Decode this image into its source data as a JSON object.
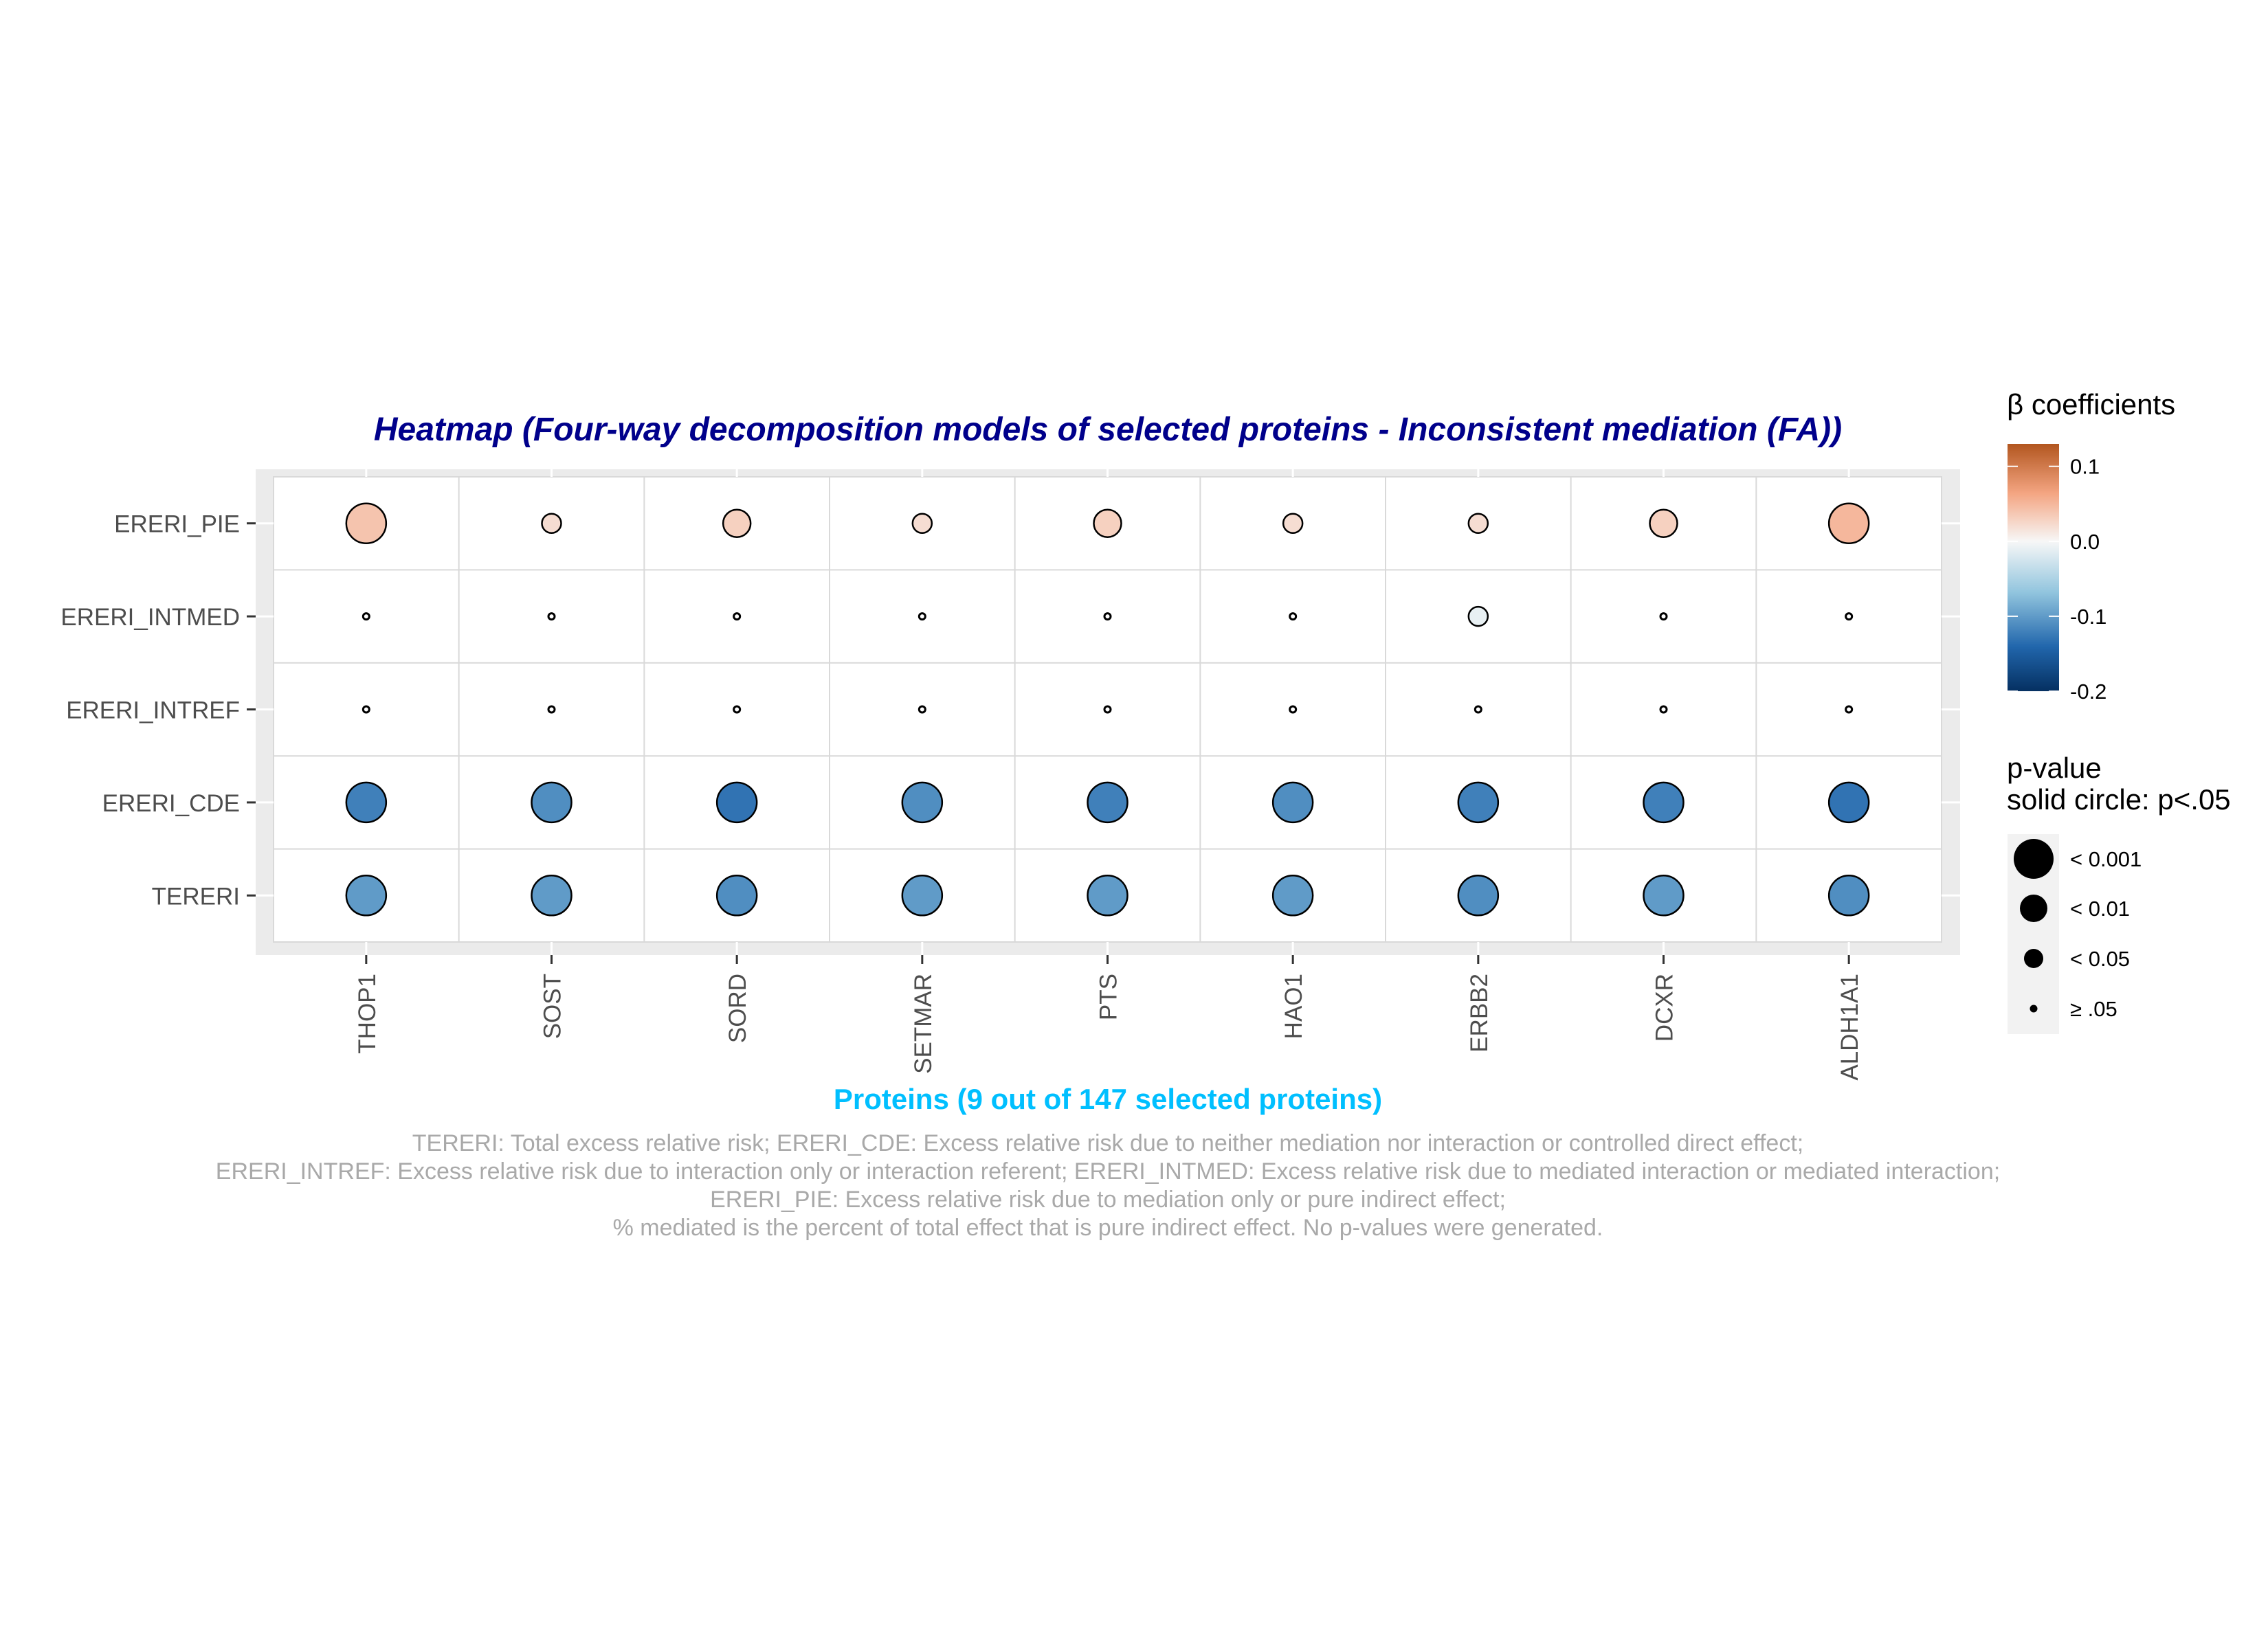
{
  "chart_data": {
    "type": "heatmap",
    "title": "Heatmap (Four-way decomposition models of selected proteins - Inconsistent mediation (FA))",
    "xlabel": "Proteins (9 out of 147 selected proteins)",
    "ylabel": "",
    "x_categories": [
      "THOP1",
      "SOST",
      "SORD",
      "SETMAR",
      "PTS",
      "HAO1",
      "ERBB2",
      "DCXR",
      "ALDH1A1"
    ],
    "y_categories": [
      "ERERI_PIE",
      "ERERI_INTMED",
      "ERERI_INTREF",
      "ERERI_CDE",
      "TERERI"
    ],
    "color_legend": {
      "title": "β coefficients",
      "ticks": [
        "0.1",
        "0.0",
        "-0.1",
        "-0.2"
      ],
      "tick_values": [
        0.1,
        0.0,
        -0.1,
        -0.2
      ],
      "range": [
        -0.2,
        0.13
      ],
      "low_color": "#053061",
      "mid_color": "#f7f7f7",
      "high_color": "#b2561f"
    },
    "size_legend": {
      "title_lines": [
        "p-value",
        "solid circle: p<.05"
      ],
      "labels": [
        "< 0.001",
        "< 0.01",
        "< 0.05",
        "≥ .05"
      ],
      "sizes": [
        4,
        3,
        2,
        1
      ]
    },
    "series": [
      {
        "row": "ERERI_PIE",
        "values": [
          0.04,
          0.02,
          0.03,
          0.02,
          0.03,
          0.02,
          0.02,
          0.03,
          0.05
        ],
        "p_size": [
          4,
          2,
          3,
          2,
          3,
          2,
          2,
          3,
          4
        ]
      },
      {
        "row": "ERERI_INTMED",
        "values": [
          0.0,
          0.0,
          0.0,
          0.0,
          0.0,
          0.0,
          -0.01,
          0.0,
          0.0
        ],
        "p_size": [
          1,
          1,
          1,
          1,
          1,
          1,
          2,
          1,
          1
        ]
      },
      {
        "row": "ERERI_INTREF",
        "values": [
          0.0,
          0.0,
          0.0,
          0.0,
          0.0,
          0.0,
          0.0,
          0.0,
          0.0
        ],
        "p_size": [
          1,
          1,
          1,
          1,
          1,
          1,
          1,
          1,
          1
        ]
      },
      {
        "row": "ERERI_CDE",
        "values": [
          -0.12,
          -0.11,
          -0.13,
          -0.11,
          -0.12,
          -0.11,
          -0.12,
          -0.12,
          -0.13
        ],
        "p_size": [
          4,
          4,
          4,
          4,
          4,
          4,
          4,
          4,
          4
        ]
      },
      {
        "row": "TERERI",
        "values": [
          -0.1,
          -0.1,
          -0.11,
          -0.1,
          -0.1,
          -0.1,
          -0.11,
          -0.1,
          -0.11
        ],
        "p_size": [
          4,
          4,
          4,
          4,
          4,
          4,
          4,
          4,
          4
        ]
      }
    ],
    "caption": [
      "TERERI: Total excess relative risk; ERERI_CDE: Excess relative risk due to neither mediation nor interaction or controlled direct effect;",
      "ERERI_INTREF: Excess relative risk due to interaction only or interaction referent; ERERI_INTMED: Excess relative risk due to mediated interaction or mediated interaction;",
      "ERERI_PIE: Excess relative risk due to mediation only or pure indirect effect;",
      "% mediated is the percent of total effect that is pure indirect effect. No p-values were generated."
    ],
    "grid": true,
    "legend_position": "right",
    "colors": {
      "title": "#00008b",
      "xlabel": "#00bfff",
      "caption": "#a9a9a9",
      "panel_border_bg": "#ebebeb",
      "gridline": "#d9d9d9"
    }
  }
}
